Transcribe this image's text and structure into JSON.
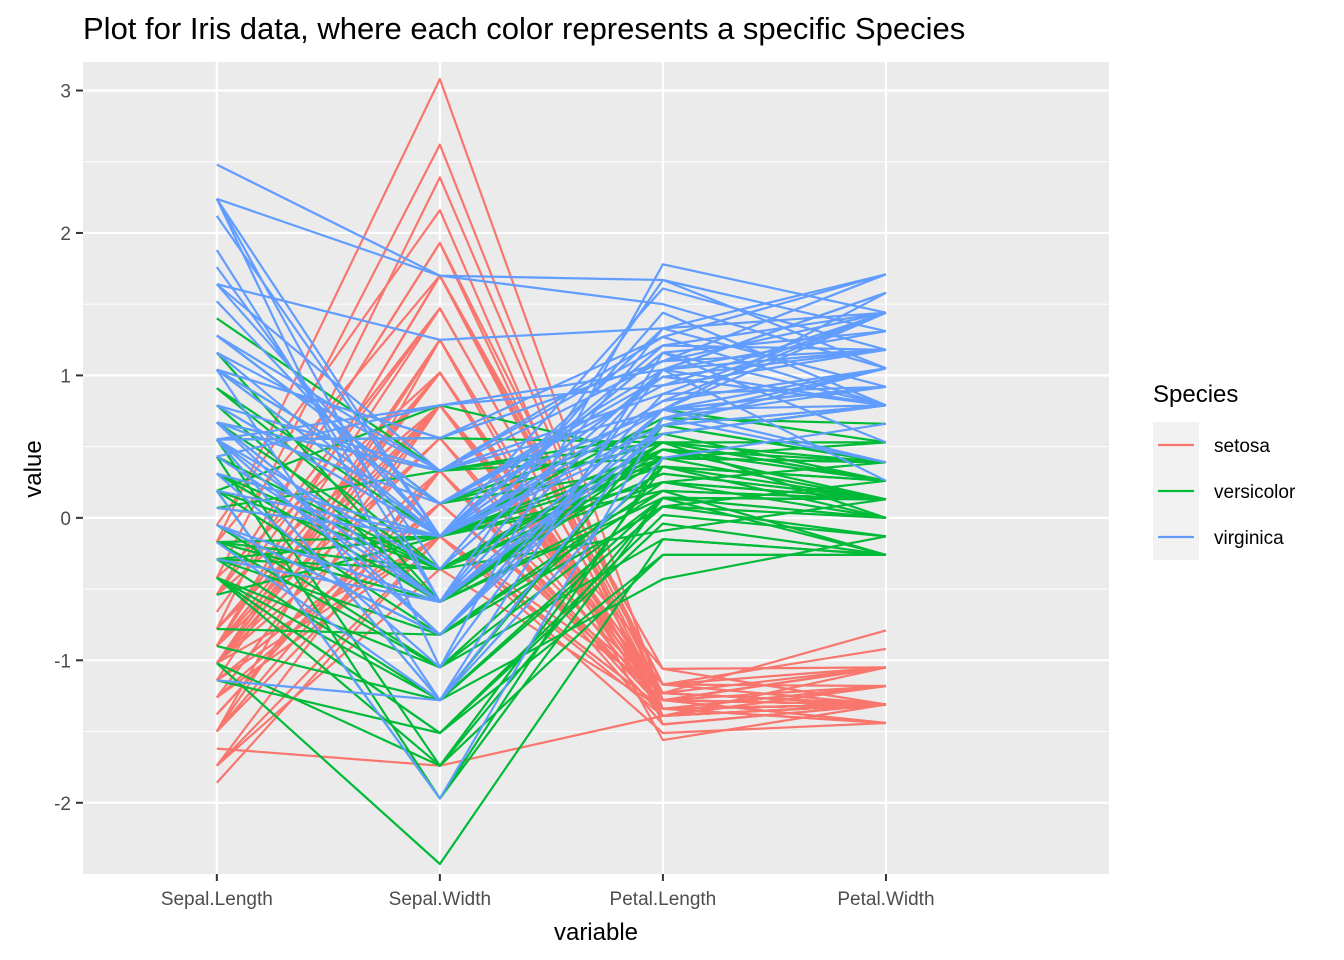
{
  "chart_data": {
    "type": "line",
    "title": "Plot for Iris data, where each color represents a specific Species",
    "xlabel": "variable",
    "ylabel": "value",
    "categories": [
      "Sepal.Length",
      "Sepal.Width",
      "Petal.Length",
      "Petal.Width"
    ],
    "ylim": [
      -2.5,
      3.2
    ],
    "yticks": [
      -2,
      -1,
      0,
      1,
      2,
      3
    ],
    "grid": true,
    "legend": {
      "title": "Species",
      "position": "right"
    },
    "series": [
      {
        "name": "setosa",
        "color": "#F8766D",
        "lines": [
          [
            -0.9,
            1.02,
            -1.34,
            -1.31
          ],
          [
            -1.14,
            -0.13,
            -1.34,
            -1.31
          ],
          [
            -1.38,
            0.33,
            -1.39,
            -1.31
          ],
          [
            -1.5,
            0.1,
            -1.28,
            -1.31
          ],
          [
            -1.02,
            1.25,
            -1.34,
            -1.31
          ],
          [
            -0.54,
            1.93,
            -1.17,
            -1.05
          ],
          [
            -1.5,
            0.79,
            -1.34,
            -1.18
          ],
          [
            -1.02,
            0.79,
            -1.28,
            -1.31
          ],
          [
            -1.74,
            -0.36,
            -1.34,
            -1.31
          ],
          [
            -1.14,
            0.1,
            -1.28,
            -1.44
          ],
          [
            -0.54,
            1.47,
            -1.28,
            -1.31
          ],
          [
            -1.26,
            0.79,
            -1.23,
            -1.31
          ],
          [
            -1.26,
            -0.13,
            -1.34,
            -1.44
          ],
          [
            -1.86,
            -0.13,
            -1.51,
            -1.44
          ],
          [
            -0.05,
            2.16,
            -1.45,
            -1.31
          ],
          [
            -0.17,
            3.08,
            -1.28,
            -1.05
          ],
          [
            -0.54,
            1.93,
            -1.39,
            -1.05
          ],
          [
            -0.9,
            1.02,
            -1.34,
            -1.18
          ],
          [
            -0.17,
            1.7,
            -1.17,
            -1.18
          ],
          [
            -0.9,
            1.7,
            -1.28,
            -1.18
          ],
          [
            -0.54,
            0.79,
            -1.17,
            -1.31
          ],
          [
            -0.9,
            1.47,
            -1.28,
            -1.05
          ],
          [
            -1.5,
            1.25,
            -1.56,
            -1.31
          ],
          [
            -0.9,
            0.56,
            -1.17,
            -0.92
          ],
          [
            -1.26,
            0.79,
            -1.06,
            -1.31
          ],
          [
            -1.02,
            -0.13,
            -1.23,
            -1.31
          ],
          [
            -1.02,
            0.79,
            -1.23,
            -1.05
          ],
          [
            -0.78,
            1.02,
            -1.28,
            -1.31
          ],
          [
            -0.78,
            0.79,
            -1.34,
            -1.31
          ],
          [
            -1.38,
            0.33,
            -1.23,
            -1.31
          ],
          [
            -1.26,
            0.1,
            -1.23,
            -1.31
          ],
          [
            -0.54,
            0.79,
            -1.28,
            -1.05
          ],
          [
            -0.78,
            2.39,
            -1.28,
            -1.44
          ],
          [
            -0.42,
            2.62,
            -1.34,
            -1.31
          ],
          [
            -1.14,
            0.1,
            -1.28,
            -1.31
          ],
          [
            -1.02,
            0.33,
            -1.45,
            -1.31
          ],
          [
            -0.42,
            1.02,
            -1.39,
            -1.31
          ],
          [
            -1.14,
            1.25,
            -1.34,
            -1.44
          ],
          [
            -1.74,
            -0.13,
            -1.39,
            -1.31
          ],
          [
            -0.9,
            0.79,
            -1.28,
            -1.31
          ],
          [
            -1.02,
            1.02,
            -1.39,
            -1.18
          ],
          [
            -1.62,
            -1.74,
            -1.39,
            -1.18
          ],
          [
            -1.74,
            0.33,
            -1.39,
            -1.31
          ],
          [
            -1.02,
            1.02,
            -1.23,
            -0.79
          ],
          [
            -0.9,
            1.7,
            -1.06,
            -1.05
          ],
          [
            -1.26,
            -0.13,
            -1.34,
            -1.18
          ],
          [
            -0.9,
            1.7,
            -1.23,
            -1.31
          ],
          [
            -1.5,
            0.33,
            -1.34,
            -1.31
          ],
          [
            -0.66,
            1.47,
            -1.28,
            -1.31
          ],
          [
            -1.02,
            0.56,
            -1.34,
            -1.31
          ]
        ]
      },
      {
        "name": "versicolor",
        "color": "#00BA38",
        "lines": [
          [
            1.4,
            0.33,
            0.53,
            0.26
          ],
          [
            0.67,
            0.33,
            0.42,
            0.39
          ],
          [
            1.28,
            0.1,
            0.65,
            0.39
          ],
          [
            -0.42,
            -1.74,
            0.14,
            0.13
          ],
          [
            0.79,
            -0.59,
            0.48,
            0.39
          ],
          [
            -0.17,
            -0.59,
            0.42,
            0.13
          ],
          [
            0.55,
            0.56,
            0.53,
            0.53
          ],
          [
            -1.14,
            -1.51,
            -0.26,
            -0.26
          ],
          [
            0.91,
            -0.36,
            0.48,
            0.13
          ],
          [
            -0.78,
            -0.82,
            0.08,
            0.26
          ],
          [
            -1.02,
            -2.43,
            -0.15,
            -0.26
          ],
          [
            0.07,
            -0.13,
            0.25,
            0.39
          ],
          [
            0.19,
            -1.97,
            0.14,
            -0.26
          ],
          [
            0.31,
            -0.36,
            0.53,
            0.26
          ],
          [
            -0.29,
            -0.36,
            -0.09,
            0.13
          ],
          [
            1.04,
            0.1,
            0.36,
            0.26
          ],
          [
            -0.29,
            -0.13,
            0.42,
            0.39
          ],
          [
            -0.05,
            -0.82,
            0.19,
            -0.26
          ],
          [
            0.43,
            -1.97,
            0.42,
            0.39
          ],
          [
            -0.29,
            -1.28,
            0.08,
            -0.13
          ],
          [
            0.07,
            0.33,
            0.59,
            0.79
          ],
          [
            0.31,
            -0.59,
            0.14,
            0.13
          ],
          [
            0.55,
            -1.28,
            0.65,
            0.39
          ],
          [
            0.31,
            -0.59,
            0.53,
            0.0
          ],
          [
            0.67,
            -0.36,
            0.31,
            0.13
          ],
          [
            0.91,
            -0.13,
            0.36,
            0.26
          ],
          [
            1.16,
            -0.59,
            0.59,
            0.26
          ],
          [
            1.04,
            -0.13,
            0.7,
            0.66
          ],
          [
            0.19,
            -0.36,
            0.42,
            0.39
          ],
          [
            -0.17,
            -1.05,
            -0.15,
            -0.26
          ],
          [
            -0.42,
            -1.51,
            0.02,
            -0.13
          ],
          [
            -0.42,
            -1.51,
            -0.04,
            -0.26
          ],
          [
            -0.05,
            -0.82,
            0.08,
            0.0
          ],
          [
            0.19,
            -0.82,
            0.76,
            0.53
          ],
          [
            -0.54,
            -0.13,
            0.42,
            0.39
          ],
          [
            0.19,
            0.79,
            0.42,
            0.53
          ],
          [
            1.04,
            0.1,
            0.53,
            0.39
          ],
          [
            0.55,
            -1.74,
            0.36,
            0.13
          ],
          [
            -0.29,
            -0.13,
            0.19,
            0.13
          ],
          [
            -0.42,
            -1.28,
            0.14,
            0.13
          ],
          [
            -0.42,
            -1.05,
            0.36,
            0.0
          ],
          [
            0.31,
            -0.13,
            0.48,
            0.26
          ],
          [
            -0.05,
            -1.05,
            0.14,
            0.0
          ],
          [
            -1.02,
            -1.74,
            -0.26,
            -0.26
          ],
          [
            -0.29,
            -0.82,
            0.25,
            0.13
          ],
          [
            -0.17,
            -0.13,
            0.25,
            0.0
          ],
          [
            -0.17,
            -0.36,
            0.25,
            0.13
          ],
          [
            0.43,
            -0.36,
            0.31,
            0.13
          ],
          [
            -0.9,
            -1.28,
            -0.43,
            -0.13
          ],
          [
            -0.17,
            -0.59,
            0.19,
            0.13
          ]
        ]
      },
      {
        "name": "virginica",
        "color": "#619CFF",
        "lines": [
          [
            0.55,
            0.56,
            1.27,
            1.71
          ],
          [
            -0.05,
            -0.82,
            0.76,
            0.92
          ],
          [
            1.52,
            -0.13,
            1.21,
            1.18
          ],
          [
            0.55,
            -0.36,
            1.04,
            0.79
          ],
          [
            0.79,
            -0.13,
            1.16,
            1.31
          ],
          [
            2.12,
            -0.13,
            1.61,
            1.18
          ],
          [
            -1.14,
            -1.28,
            0.42,
            0.66
          ],
          [
            1.76,
            -0.36,
            1.44,
            0.79
          ],
          [
            1.04,
            -1.28,
            1.16,
            0.79
          ],
          [
            1.64,
            1.25,
            1.33,
            1.71
          ],
          [
            0.79,
            0.33,
            0.76,
            1.05
          ],
          [
            0.67,
            -0.82,
            0.87,
            0.92
          ],
          [
            1.16,
            -0.13,
            0.99,
            1.18
          ],
          [
            -0.17,
            -1.28,
            0.7,
            1.05
          ],
          [
            -0.05,
            -0.59,
            0.76,
            1.58
          ],
          [
            0.67,
            0.33,
            0.87,
            1.44
          ],
          [
            0.79,
            -0.13,
            0.99,
            0.79
          ],
          [
            2.24,
            1.7,
            1.67,
            1.31
          ],
          [
            2.24,
            -1.05,
            1.78,
            1.44
          ],
          [
            0.19,
            -1.97,
            0.7,
            0.39
          ],
          [
            1.28,
            0.33,
            1.1,
            1.44
          ],
          [
            -0.29,
            -0.59,
            0.65,
            1.05
          ],
          [
            2.24,
            -0.59,
            1.67,
            1.05
          ],
          [
            0.55,
            -0.82,
            0.65,
            0.79
          ],
          [
            1.04,
            0.56,
            1.1,
            1.18
          ],
          [
            1.64,
            0.33,
            1.27,
            0.79
          ],
          [
            0.43,
            -0.59,
            0.59,
            0.79
          ],
          [
            0.31,
            -0.13,
            0.65,
            0.79
          ],
          [
            0.67,
            -0.59,
            1.04,
            1.18
          ],
          [
            1.64,
            -0.13,
            1.16,
            0.53
          ],
          [
            1.88,
            -0.59,
            1.33,
            0.92
          ],
          [
            2.48,
            1.7,
            1.5,
            1.05
          ],
          [
            0.67,
            -0.59,
            1.04,
            1.31
          ],
          [
            0.55,
            -0.59,
            0.76,
            0.39
          ],
          [
            0.31,
            -1.05,
            1.04,
            0.26
          ],
          [
            2.24,
            -0.13,
            1.33,
            1.44
          ],
          [
            0.55,
            0.79,
            1.04,
            1.58
          ],
          [
            0.67,
            0.1,
            0.99,
            0.79
          ],
          [
            0.19,
            -0.13,
            0.59,
            0.79
          ],
          [
            1.28,
            0.1,
            0.93,
            1.18
          ],
          [
            1.04,
            0.1,
            1.04,
            1.58
          ],
          [
            1.28,
            0.1,
            0.76,
            1.44
          ],
          [
            -0.05,
            -0.82,
            0.76,
            0.92
          ],
          [
            1.16,
            0.33,
            1.21,
            1.44
          ],
          [
            1.04,
            0.56,
            1.1,
            1.71
          ],
          [
            1.04,
            -0.13,
            0.82,
            1.44
          ],
          [
            0.55,
            -1.28,
            0.7,
            0.92
          ],
          [
            0.79,
            -0.13,
            0.82,
            1.05
          ],
          [
            0.43,
            0.79,
            0.93,
            1.44
          ],
          [
            0.07,
            -0.13,
            0.76,
            0.79
          ]
        ]
      }
    ]
  }
}
